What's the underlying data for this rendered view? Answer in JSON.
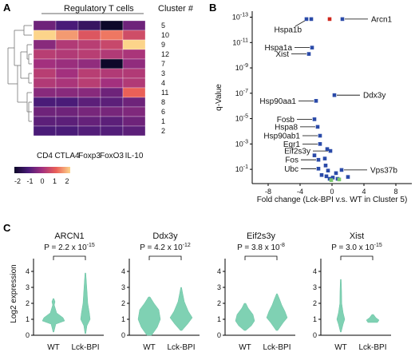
{
  "panels": {
    "a": {
      "letter": "A",
      "title": "Regulatory T cells",
      "cluster_label": "Cluster #",
      "columns": [
        "CD4",
        "CTLA4",
        "Foxp3",
        "FoxO3",
        "IL-10"
      ],
      "rows": [
        "5",
        "10",
        "9",
        "12",
        "7",
        "3",
        "4",
        "11",
        "8",
        "6",
        "1",
        "2"
      ],
      "values": [
        [
          -0.6,
          -1.0,
          -1.3,
          -2.0,
          -0.6
        ],
        [
          2.0,
          1.5,
          0.8,
          1.2,
          0.6
        ],
        [
          -0.3,
          0.2,
          0.3,
          0.5,
          2.3
        ],
        [
          0.3,
          0.2,
          0.3,
          0.2,
          0.1
        ],
        [
          0.0,
          -0.1,
          -0.2,
          -2.0,
          -0.2
        ],
        [
          0.3,
          0.0,
          0.3,
          0.2,
          0.2
        ],
        [
          0.2,
          0.1,
          0.3,
          0.0,
          0.2
        ],
        [
          -0.3,
          -0.3,
          -0.3,
          -0.6,
          1.0
        ],
        [
          -1.0,
          -1.0,
          -0.8,
          -0.8,
          -0.6
        ],
        [
          -0.6,
          -0.6,
          -0.5,
          -0.5,
          -0.4
        ],
        [
          -0.8,
          -0.8,
          -0.7,
          -0.8,
          -0.6
        ],
        [
          -1.0,
          -1.0,
          -0.9,
          -0.9,
          -0.8
        ]
      ],
      "colorbar_ticks": [
        "-2",
        "-1",
        "0",
        "1",
        "2"
      ]
    },
    "b": {
      "letter": "B",
      "ylabel": "q-Value",
      "xlabel": "Fold change (Lck-BPI v.s. WT in Cluster 5)",
      "xticks": [
        "-8",
        "-4",
        "0",
        "4",
        "8"
      ],
      "ytick_exponents": [
        "-13",
        "-11",
        "-9",
        "-7",
        "-5",
        "-3",
        "-1"
      ],
      "labels": [
        "Arcn1",
        "Hspa1b",
        "Hspa1a",
        "Xist",
        "Ddx3y",
        "Hsp90aa1",
        "Fosb",
        "Hspa8",
        "Hsp90ab1",
        "Egr1",
        "Eif2s3y",
        "Fos",
        "Ubc",
        "Vps37b"
      ],
      "points": [
        {
          "fc": 1.3,
          "nlq": 12.85,
          "color": "#2a4aa8",
          "label": "Arcn1"
        },
        {
          "fc": -3.2,
          "nlq": 12.85,
          "color": "#2a4aa8",
          "label": "Hspa1b"
        },
        {
          "fc": -2.6,
          "nlq": 12.85,
          "color": "#2a4aa8"
        },
        {
          "fc": -0.3,
          "nlq": 12.85,
          "color": "#d0271d"
        },
        {
          "fc": -2.5,
          "nlq": 10.6,
          "color": "#2a4aa8",
          "label": "Hspa1a"
        },
        {
          "fc": -2.9,
          "nlq": 10.1,
          "color": "#2a4aa8",
          "label": "Xist"
        },
        {
          "fc": 0.3,
          "nlq": 6.85,
          "color": "#2a4aa8",
          "label": "Ddx3y"
        },
        {
          "fc": -2.0,
          "nlq": 6.4,
          "color": "#2a4aa8",
          "label": "Hsp90aa1"
        },
        {
          "fc": -2.2,
          "nlq": 4.95,
          "color": "#2a4aa8",
          "label": "Fosb"
        },
        {
          "fc": -1.8,
          "nlq": 4.35,
          "color": "#2a4aa8",
          "label": "Hspa8"
        },
        {
          "fc": -1.5,
          "nlq": 3.65,
          "color": "#2a4aa8",
          "label": "Hsp90ab1"
        },
        {
          "fc": -1.5,
          "nlq": 3.0,
          "color": "#2a4aa8",
          "label": "Egr1"
        },
        {
          "fc": -0.6,
          "nlq": 2.6,
          "color": "#2a4aa8"
        },
        {
          "fc": -0.2,
          "nlq": 2.45,
          "color": "#2a4aa8",
          "label": "Eif2s3y"
        },
        {
          "fc": -2.2,
          "nlq": 2.1,
          "color": "#2a4aa8"
        },
        {
          "fc": -1.7,
          "nlq": 1.75,
          "color": "#2a4aa8",
          "label": "Fos"
        },
        {
          "fc": -0.9,
          "nlq": 1.85,
          "color": "#2a4aa8"
        },
        {
          "fc": -1.7,
          "nlq": 1.05,
          "color": "#2a4aa8",
          "label": "Ubc"
        },
        {
          "fc": -0.8,
          "nlq": 1.3,
          "color": "#2a4aa8"
        },
        {
          "fc": 1.2,
          "nlq": 0.95,
          "color": "#2a4aa8",
          "label": "Vps37b"
        },
        {
          "fc": -0.5,
          "nlq": 0.9,
          "color": "#2a4aa8"
        },
        {
          "fc": 0.5,
          "nlq": 0.7,
          "color": "#2a4aa8"
        },
        {
          "fc": -1.3,
          "nlq": 0.55,
          "color": "#2a4aa8"
        },
        {
          "fc": -0.7,
          "nlq": 0.45,
          "color": "#2a4aa8"
        },
        {
          "fc": 0.1,
          "nlq": 0.35,
          "color": "#2a4aa8"
        },
        {
          "fc": -0.3,
          "nlq": 0.25,
          "color": "#2a4aa8"
        },
        {
          "fc": 0.7,
          "nlq": 0.25,
          "color": "#2a4aa8"
        },
        {
          "fc": 2.0,
          "nlq": 0.4,
          "color": "#2a4aa8"
        },
        {
          "fc": -0.1,
          "nlq": 0.15,
          "color": "#7bc86b"
        },
        {
          "fc": 0.9,
          "nlq": 0.2,
          "color": "#7bc86b"
        }
      ]
    },
    "c": {
      "letter": "C",
      "ylabel": "Log2 expression",
      "yticks": [
        "0",
        "1",
        "2",
        "3",
        "4"
      ],
      "groups": [
        "WT",
        "Lck-BPI"
      ],
      "p_prefix": "P = ",
      "times": " x 10",
      "plots": [
        {
          "title": "ARCN1",
          "p_mantissa": "2.2",
          "p_exp": "-15"
        },
        {
          "title": "Ddx3y",
          "p_mantissa": "4.2",
          "p_exp": "-12"
        },
        {
          "title": "Eif2s3y",
          "p_mantissa": "3.8",
          "p_exp": "-8"
        },
        {
          "title": "Xist",
          "p_mantissa": "3.0",
          "p_exp": "-15"
        }
      ]
    }
  }
}
